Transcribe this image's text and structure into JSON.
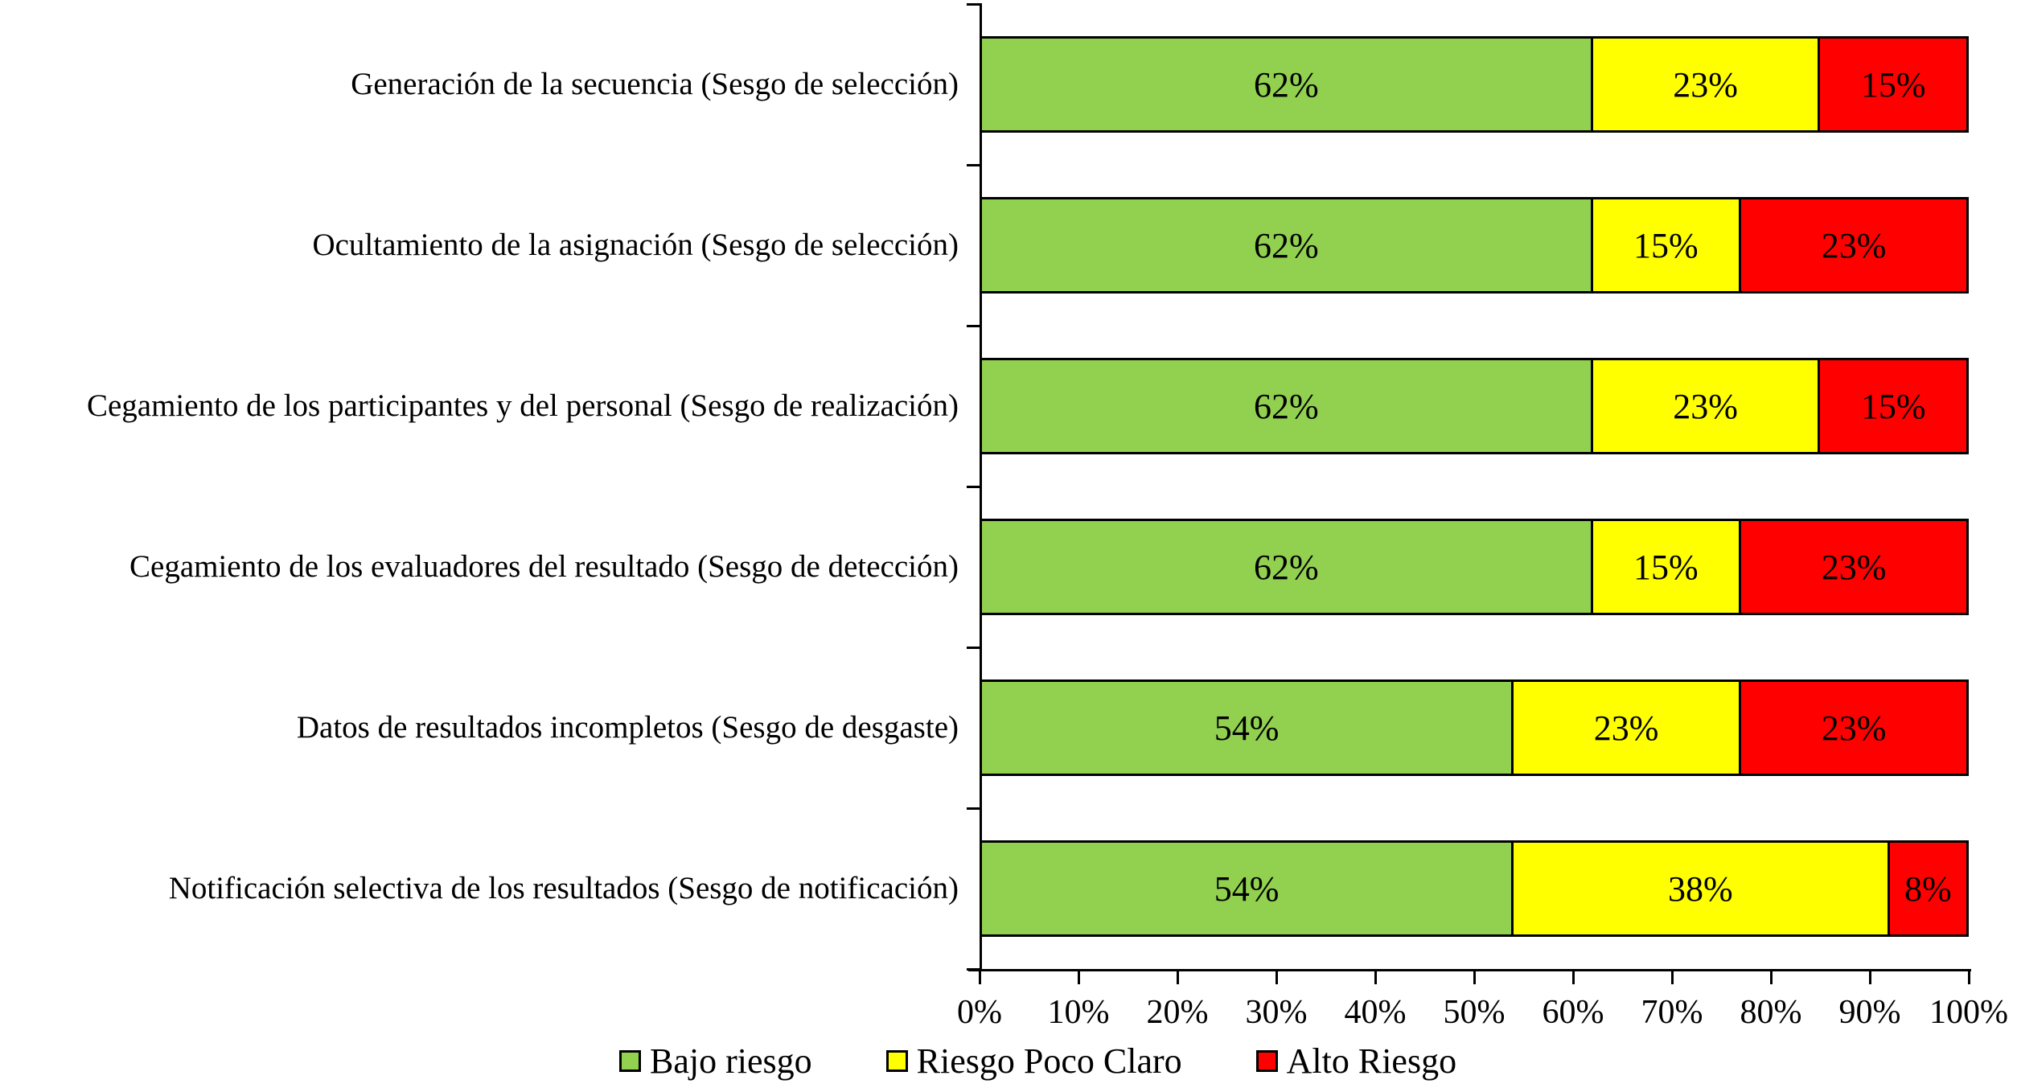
{
  "chart_data": {
    "type": "bar",
    "orientation": "horizontal",
    "stacked": true,
    "unit": "%",
    "title": "",
    "categories": [
      "Generación de la secuencia (Sesgo de selección)",
      "Ocultamiento de la asignación (Sesgo de selección)",
      "Cegamiento de los participantes y del personal (Sesgo de realización)",
      "Cegamiento de los evaluadores del resultado (Sesgo de detección)",
      "Datos de resultados incompletos (Sesgo de desgaste)",
      "Notificación selectiva de los resultados (Sesgo de notificación)"
    ],
    "series": [
      {
        "name": "Bajo riesgo",
        "color": "#92D050",
        "values": [
          62,
          62,
          62,
          62,
          54,
          54
        ],
        "labels": [
          "62%",
          "62%",
          "62%",
          "62%",
          "54%",
          "54%"
        ]
      },
      {
        "name": "Riesgo Poco Claro",
        "color": "#FFFF00",
        "values": [
          23,
          15,
          23,
          15,
          23,
          38
        ],
        "labels": [
          "23%",
          "15%",
          "23%",
          "15%",
          "23%",
          "38%"
        ]
      },
      {
        "name": "Alto Riesgo",
        "color": "#FF0000",
        "values": [
          15,
          23,
          15,
          23,
          23,
          8
        ],
        "labels": [
          "15%",
          "23%",
          "15%",
          "23%",
          "23%",
          "8%"
        ]
      }
    ],
    "x_axis": {
      "min": 0,
      "max": 100,
      "tick_step": 10,
      "tick_labels": [
        "0%",
        "10%",
        "20%",
        "30%",
        "40%",
        "50%",
        "60%",
        "70%",
        "80%",
        "90%",
        "100%"
      ]
    },
    "legend": {
      "position": "bottom",
      "entries": [
        "Bajo riesgo",
        "Riesgo Poco Claro",
        "Alto Riesgo"
      ]
    },
    "grid": false,
    "colors": {
      "axis": "#000000",
      "bar_border": "#000000",
      "label_text": "#000000",
      "background": "#FFFFFF"
    }
  }
}
